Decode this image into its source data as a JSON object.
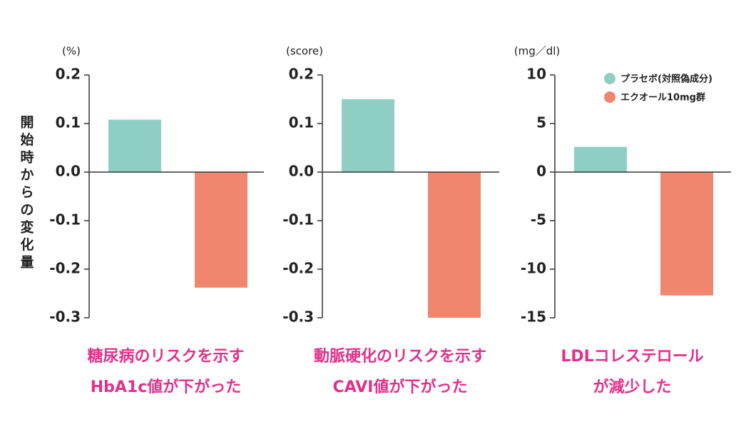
{
  "chart_data": [
    {
      "type": "bar",
      "ylabel": "開始時からの変化量",
      "unit": "(%)",
      "title": [
        "糖尿病のリスクを示す",
        "HbA1c値が下がった"
      ],
      "series": [
        {
          "color": "#8fcfc3",
          "values": [
            0.108
          ]
        },
        {
          "color": "#ef866d",
          "values": [
            -0.238
          ]
        }
      ],
      "ylim": [
        -0.3,
        0.2
      ],
      "yticks": [
        0.2,
        0.1,
        {
          "value": 0,
          "label": "0.0"
        },
        -0.1,
        -0.2,
        -0.3
      ]
    },
    {
      "type": "bar",
      "unit": "(score)",
      "title": [
        "動脈硬化のリスクを示す",
        "CAVI値が下がった"
      ],
      "series": [
        {
          "color": "#8fcfc3",
          "values": [
            0.15
          ]
        },
        {
          "color": "#ef866d",
          "values": [
            -0.3
          ]
        }
      ],
      "ylim": [
        -0.3,
        0.2
      ],
      "yticks": [
        0.2,
        0.1,
        {
          "value": 0,
          "label": "0.0"
        },
        -0.1,
        -0.2,
        -0.3
      ]
    },
    {
      "type": "bar",
      "unit": "(mg／dl)",
      "title": [
        "LDLコレステロール",
        "が減少した"
      ],
      "series": [
        {
          "name": "プラセボ(対照偽成分)",
          "color": "#8fcfc3",
          "values": [
            2.6
          ]
        },
        {
          "name": "エクオール10mg群",
          "color": "#ef866d",
          "values": [
            -12.7
          ]
        }
      ],
      "ylim": [
        -15,
        10
      ],
      "yticks": [
        10,
        5,
        0,
        -5,
        -10,
        -15
      ],
      "legend": "top-right"
    }
  ]
}
